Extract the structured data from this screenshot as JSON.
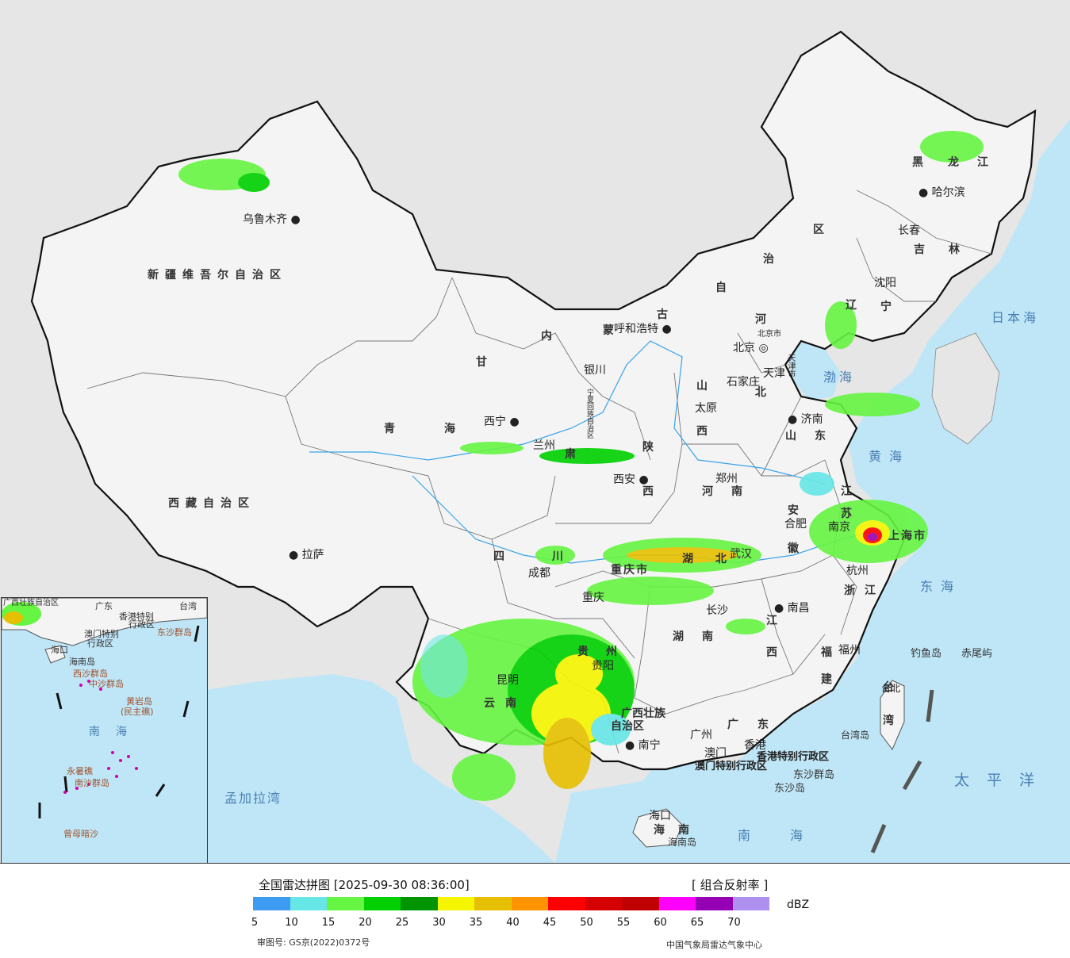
{
  "map": {
    "provinces": {
      "xinjiang": "新疆维吾尔自治区",
      "xizang": "西藏自治区",
      "qinghai_a": "青",
      "qinghai_b": "海",
      "gansu": "甘",
      "gansu_b": "肃",
      "neimenggu": [
        "内",
        "蒙",
        "古",
        "自",
        "治",
        "区"
      ],
      "heilongjiang": [
        "黑",
        "龙",
        "江"
      ],
      "jilin": [
        "吉",
        "林"
      ],
      "liaoning": [
        "辽",
        "宁"
      ],
      "hebei": [
        "河",
        "北"
      ],
      "shanxi": [
        "山",
        "西"
      ],
      "shandong": [
        "山",
        "东"
      ],
      "shaanxi": [
        "陕",
        "西"
      ],
      "henan": [
        "河",
        "南"
      ],
      "sichuan": [
        "四",
        "川"
      ],
      "chongqing": "重庆市",
      "hubei": [
        "湖",
        "北"
      ],
      "hunan": [
        "湖",
        "南"
      ],
      "jiangxi": [
        "江",
        "西"
      ],
      "anhui": [
        "安",
        "徽"
      ],
      "jiangsu": [
        "江",
        "苏"
      ],
      "zhejiang": [
        "浙",
        "江"
      ],
      "fujian": [
        "福",
        "建"
      ],
      "guangdong": [
        "广",
        "东"
      ],
      "guangxi_a": "广西壮族",
      "guangxi_b": "自治区",
      "yunnan": [
        "云",
        "南"
      ],
      "guizhou": [
        "贵",
        "州"
      ],
      "hainan": [
        "海",
        "南"
      ],
      "ningxia": "宁夏回族自治区",
      "shanghai": "上海市",
      "tianjin": "天津市",
      "beijing": "北京市",
      "taiwan": [
        "台",
        "湾"
      ],
      "hongkong": "香港特别行政区",
      "macau": "澳门特别行政区"
    },
    "cities": {
      "urumqi": "乌鲁木齐",
      "lhasa": "拉萨",
      "xining": "西宁",
      "lanzhou": "兰州",
      "yinchuan": "银川",
      "hohhot": "呼和浩特",
      "beijing": "北京",
      "tianjin": "天津",
      "shijiazhuang": "石家庄",
      "taiyuan": "太原",
      "jinan": "济南",
      "zhengzhou": "郑州",
      "xian": "西安",
      "chengdu": "成都",
      "chongqing": "重庆",
      "wuhan": "武汉",
      "changsha": "长沙",
      "nanchang": "南昌",
      "hefei": "合肥",
      "nanjing": "南京",
      "hangzhou": "杭州",
      "fuzhou": "福州",
      "guiyang": "贵阳",
      "kunming": "昆明",
      "nanning": "南宁",
      "guangzhou": "广州",
      "macau": "澳门",
      "hongkong": "香港",
      "haikou": "海口",
      "taibei": "台北",
      "harbin": "哈尔滨",
      "changchun": "长春",
      "shenyang": "沈阳"
    },
    "seas": {
      "bohai": "渤海",
      "huanghai": "黄海",
      "donghai": "东海",
      "nanhai": "南海",
      "riben": "日本海",
      "taipingyang": "太平洋",
      "mengjiala": "孟加拉湾"
    },
    "islands": {
      "diaoyu": "钓鱼岛",
      "chiwei": "赤尾屿",
      "taiwan_dao": "台湾岛",
      "dongsha": "东沙群岛",
      "dongsha_dao": "东沙岛",
      "hainan_dao": "海南岛"
    },
    "inset": {
      "labels": [
        "台湾",
        "广东",
        "香港特别",
        "行政区",
        "澳门特别",
        "行政区",
        "东沙群岛",
        "海口",
        "海南岛",
        "西沙群岛",
        "中沙群岛",
        "黄岩岛",
        "(民主礁)",
        "南海",
        "南沙群岛",
        "永暑礁",
        "曾母暗沙",
        "广西壮族自治区"
      ]
    }
  },
  "legend": {
    "title": "全国雷达拼图 [2025-09-30 08:36:00]",
    "product": "[ 组合反射率 ]",
    "unit": "dBZ",
    "colors": [
      "#3d9bf2",
      "#66e6e6",
      "#66f542",
      "#00d000",
      "#009400",
      "#f5f500",
      "#e6c000",
      "#ff9400",
      "#ff0000",
      "#d60000",
      "#c00000",
      "#ff00ff",
      "#9600b4",
      "#ae90ee"
    ],
    "ticks": [
      "5",
      "10",
      "15",
      "20",
      "25",
      "30",
      "35",
      "40",
      "45",
      "50",
      "55",
      "60",
      "65",
      "70"
    ],
    "review_no": "审图号: GS京(2022)0372号",
    "center": "中国气象局雷达气象中心"
  }
}
